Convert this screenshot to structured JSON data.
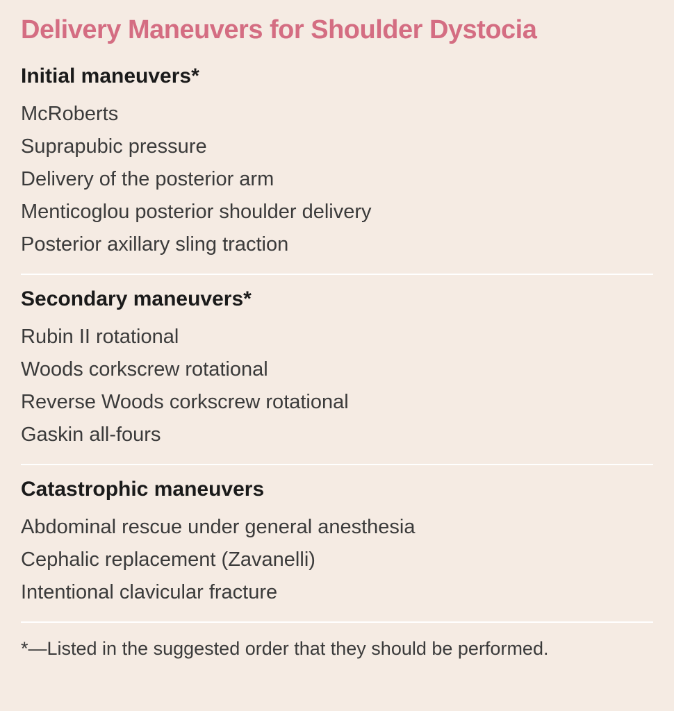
{
  "title": "Delivery Maneuvers for Shoulder Dystocia",
  "colors": {
    "title_color": "#d46d82",
    "background_color": "#f5ebe3",
    "text_color": "#3a3a3a",
    "heading_color": "#1a1a1a",
    "divider_color": "#ffffff"
  },
  "typography": {
    "title_fontsize": 38,
    "title_weight": 700,
    "heading_fontsize": 30,
    "heading_weight": 700,
    "item_fontsize": 29,
    "item_weight": 400,
    "footnote_fontsize": 27
  },
  "sections": [
    {
      "heading": "Initial maneuvers*",
      "items": [
        "McRoberts",
        "Suprapubic pressure",
        "Delivery of the posterior arm",
        "Menticoglou posterior shoulder delivery",
        "Posterior axillary sling traction"
      ]
    },
    {
      "heading": "Secondary maneuvers*",
      "items": [
        "Rubin II rotational",
        "Woods corkscrew rotational",
        "Reverse Woods corkscrew rotational",
        "Gaskin all-fours"
      ]
    },
    {
      "heading": "Catastrophic maneuvers",
      "items": [
        "Abdominal rescue under general anesthesia",
        "Cephalic replacement (Zavanelli)",
        "Intentional clavicular fracture"
      ]
    }
  ],
  "footnote": "*—Listed in the suggested order that they should be performed."
}
